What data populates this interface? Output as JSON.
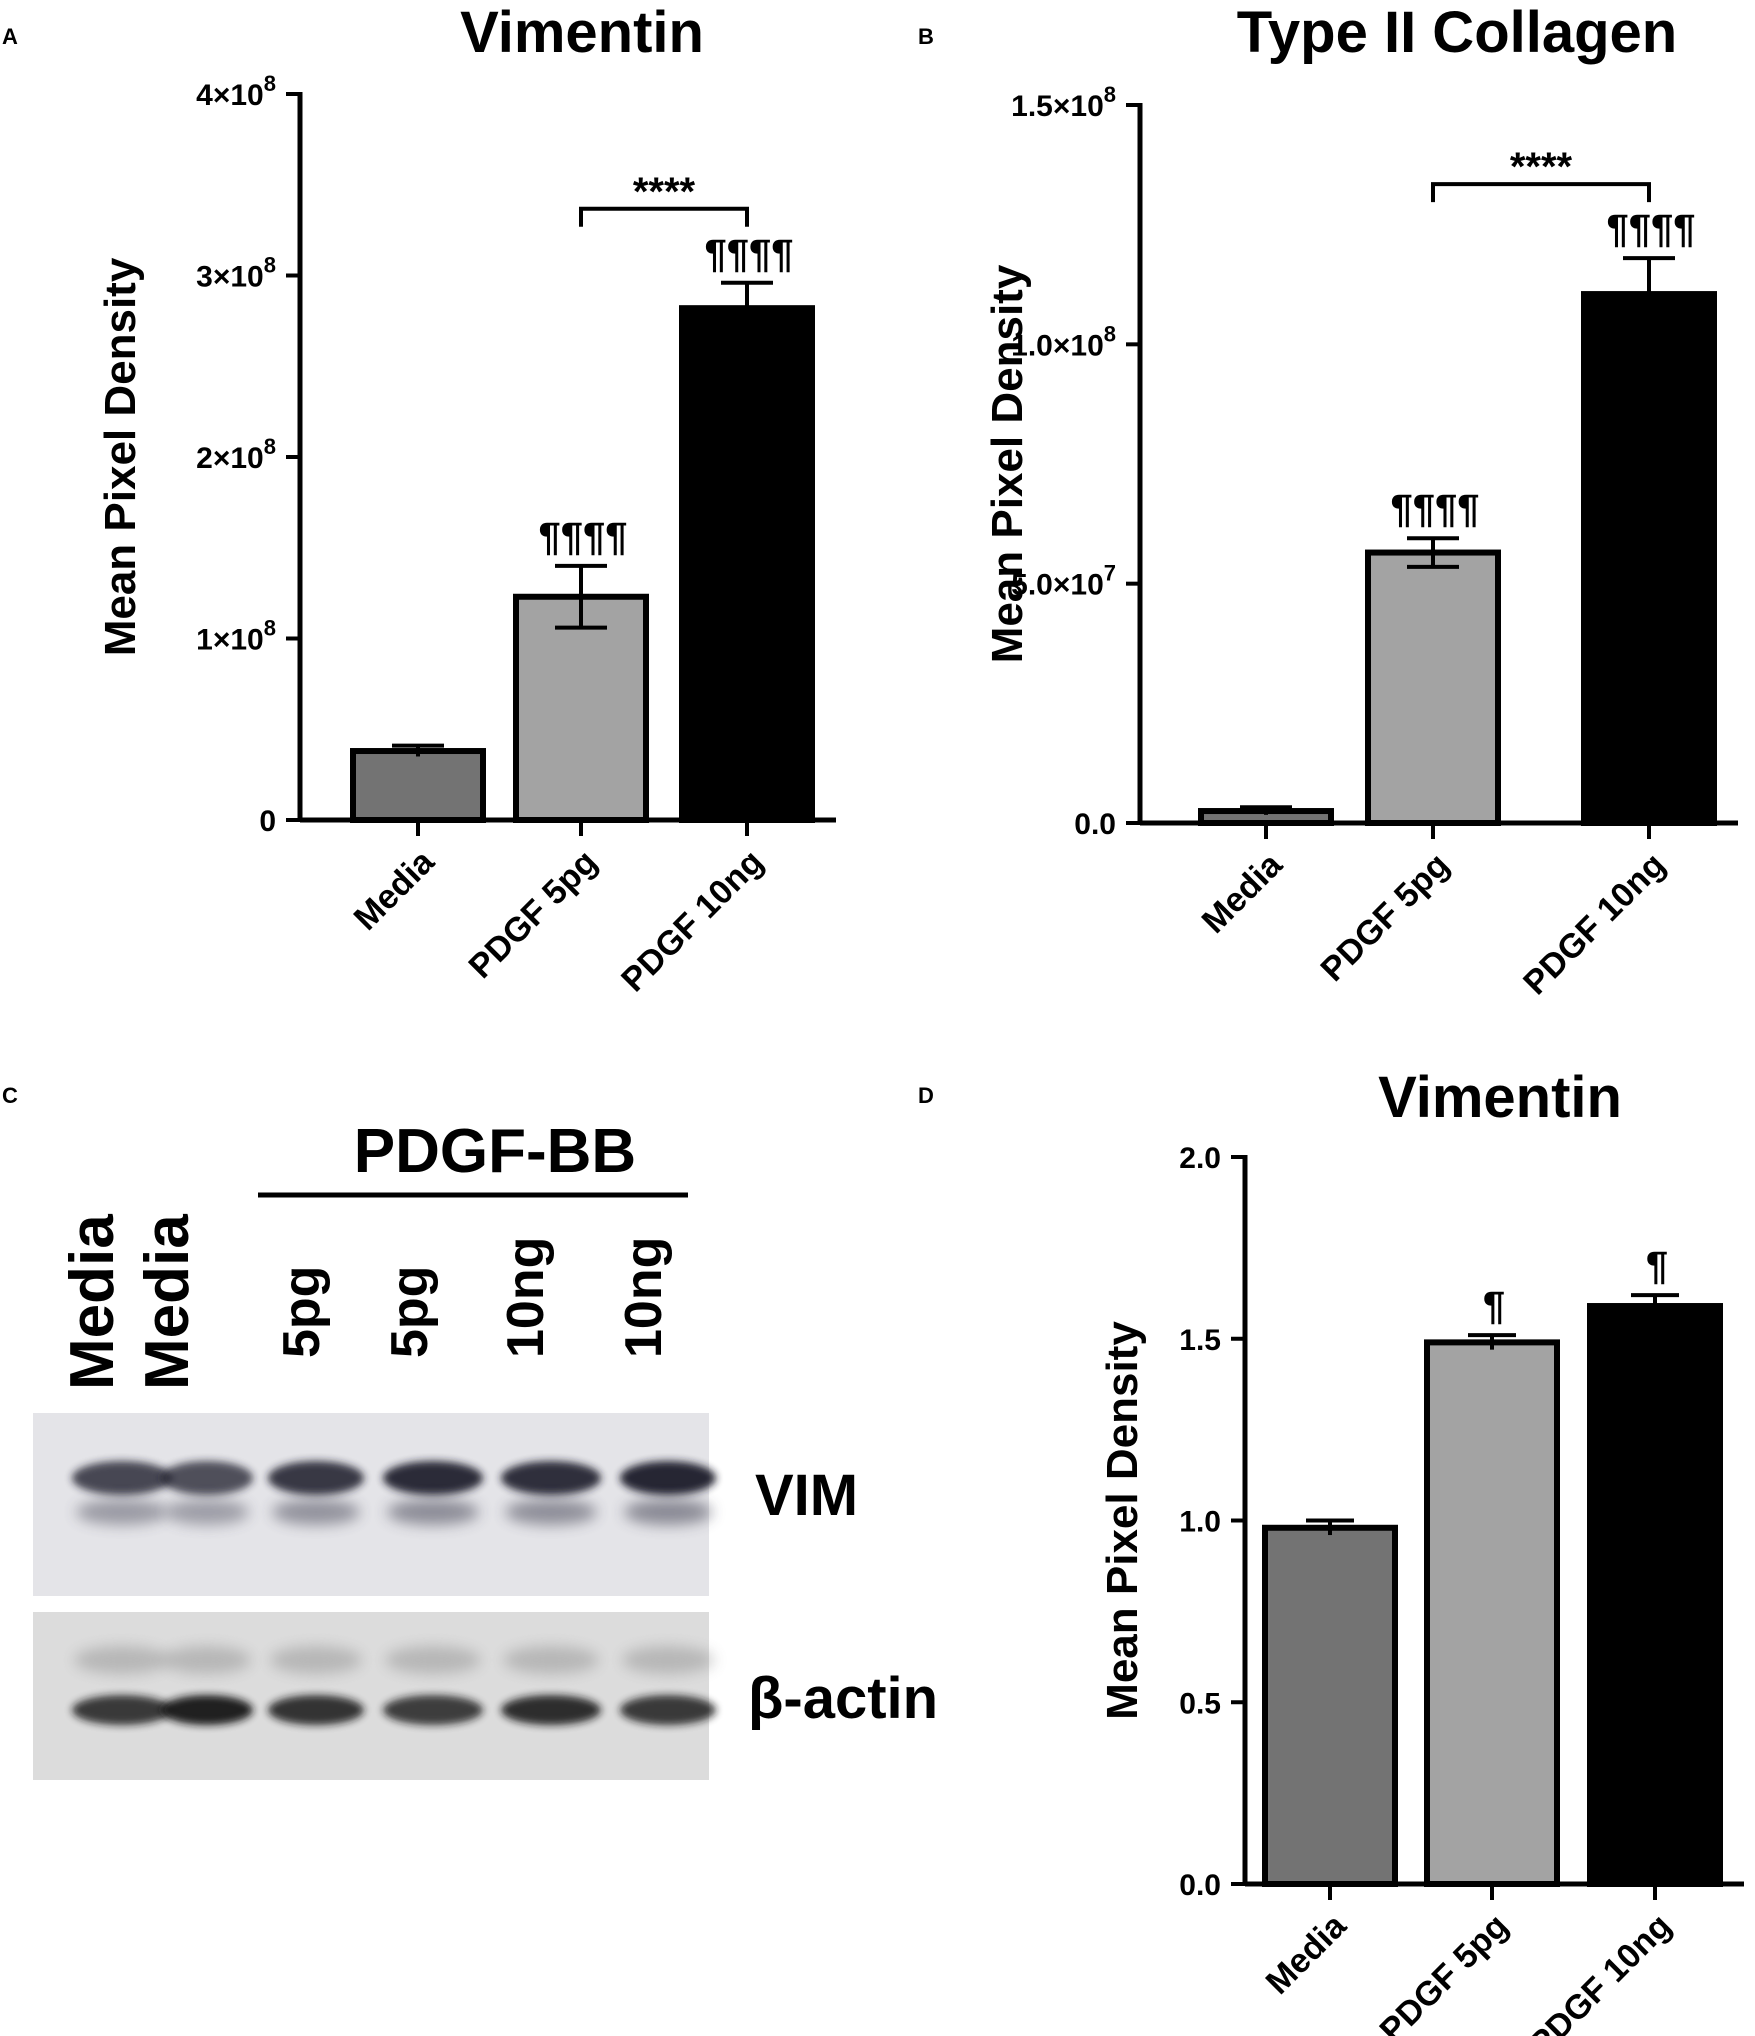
{
  "panels": {
    "a": {
      "letter": "A"
    },
    "b": {
      "letter": "B"
    },
    "c": {
      "letter": "C"
    },
    "d": {
      "letter": "D"
    }
  },
  "colors": {
    "media": "#737373",
    "pdgf_5pg": "#a3a3a3",
    "pdgf_10ng": "#000000"
  },
  "chart_data": [
    {
      "type": "bar",
      "title": "Vimentin",
      "xlabel": "",
      "ylabel": "Mean Pixel Density",
      "categories": [
        "Media",
        "PDGF 5pg",
        "PDGF 10ng"
      ],
      "values": [
        38000000,
        123000000,
        282000000
      ],
      "errors": [
        3000000,
        17000000,
        14000000
      ],
      "ylim": [
        0,
        400000000
      ],
      "yticks": [
        0,
        100000000,
        200000000,
        300000000,
        400000000
      ],
      "ytick_labels": [
        "0",
        "1×10",
        "2×10",
        "3×10",
        "4×10"
      ],
      "ytick_exponent": "8",
      "annotations": [
        "",
        "¶¶¶¶",
        "¶¶¶¶"
      ],
      "comparison": {
        "from": "PDGF 5pg",
        "to": "PDGF 10ng",
        "label": "****"
      },
      "grid": false,
      "legend": "none"
    },
    {
      "type": "bar",
      "title": "Type II Collagen",
      "xlabel": "",
      "ylabel": "Mean Pixel Density",
      "categories": [
        "Media",
        "PDGF 5pg",
        "PDGF 10ng"
      ],
      "values": [
        2500000,
        56500000,
        110500000
      ],
      "errors": [
        800000,
        3000000,
        7500000
      ],
      "ylim": [
        0,
        150000000
      ],
      "yticks": [
        0,
        50000000,
        100000000,
        150000000
      ],
      "ytick_labels": [
        "0.0",
        "5.0×10",
        "1.0×10",
        "1.5×10"
      ],
      "ytick_exponents": [
        "",
        "7",
        "8",
        "8"
      ],
      "annotations": [
        "",
        "¶¶¶¶",
        "¶¶¶¶"
      ],
      "comparison": {
        "from": "PDGF 5pg",
        "to": "PDGF 10ng",
        "label": "****"
      },
      "grid": false,
      "legend": "none"
    },
    {
      "type": "bar",
      "title": "Vimentin",
      "xlabel": "",
      "ylabel": "Mean Pixel Density",
      "categories": [
        "Media",
        "PDGF 5pg",
        "PDGF 10ng"
      ],
      "values": [
        0.98,
        1.49,
        1.59
      ],
      "errors": [
        0.02,
        0.02,
        0.03
      ],
      "ylim": [
        0,
        2.0
      ],
      "yticks": [
        0,
        0.5,
        1.0,
        1.5,
        2.0
      ],
      "ytick_labels": [
        "0.0",
        "0.5",
        "1.0",
        "1.5",
        "2.0"
      ],
      "annotations": [
        "",
        "¶",
        "¶"
      ],
      "grid": false,
      "legend": "none"
    }
  ],
  "blot": {
    "group_label": "PDGF-BB",
    "lanes": [
      "Media",
      "Media",
      "5pg",
      "5pg",
      "10ng",
      "10ng"
    ],
    "bands": [
      {
        "name": "VIM",
        "intensity": [
          0.78,
          0.74,
          0.86,
          0.92,
          0.9,
          0.95
        ]
      },
      {
        "name": "β-actin",
        "intensity": [
          0.82,
          0.95,
          0.85,
          0.8,
          0.88,
          0.82
        ]
      }
    ]
  }
}
